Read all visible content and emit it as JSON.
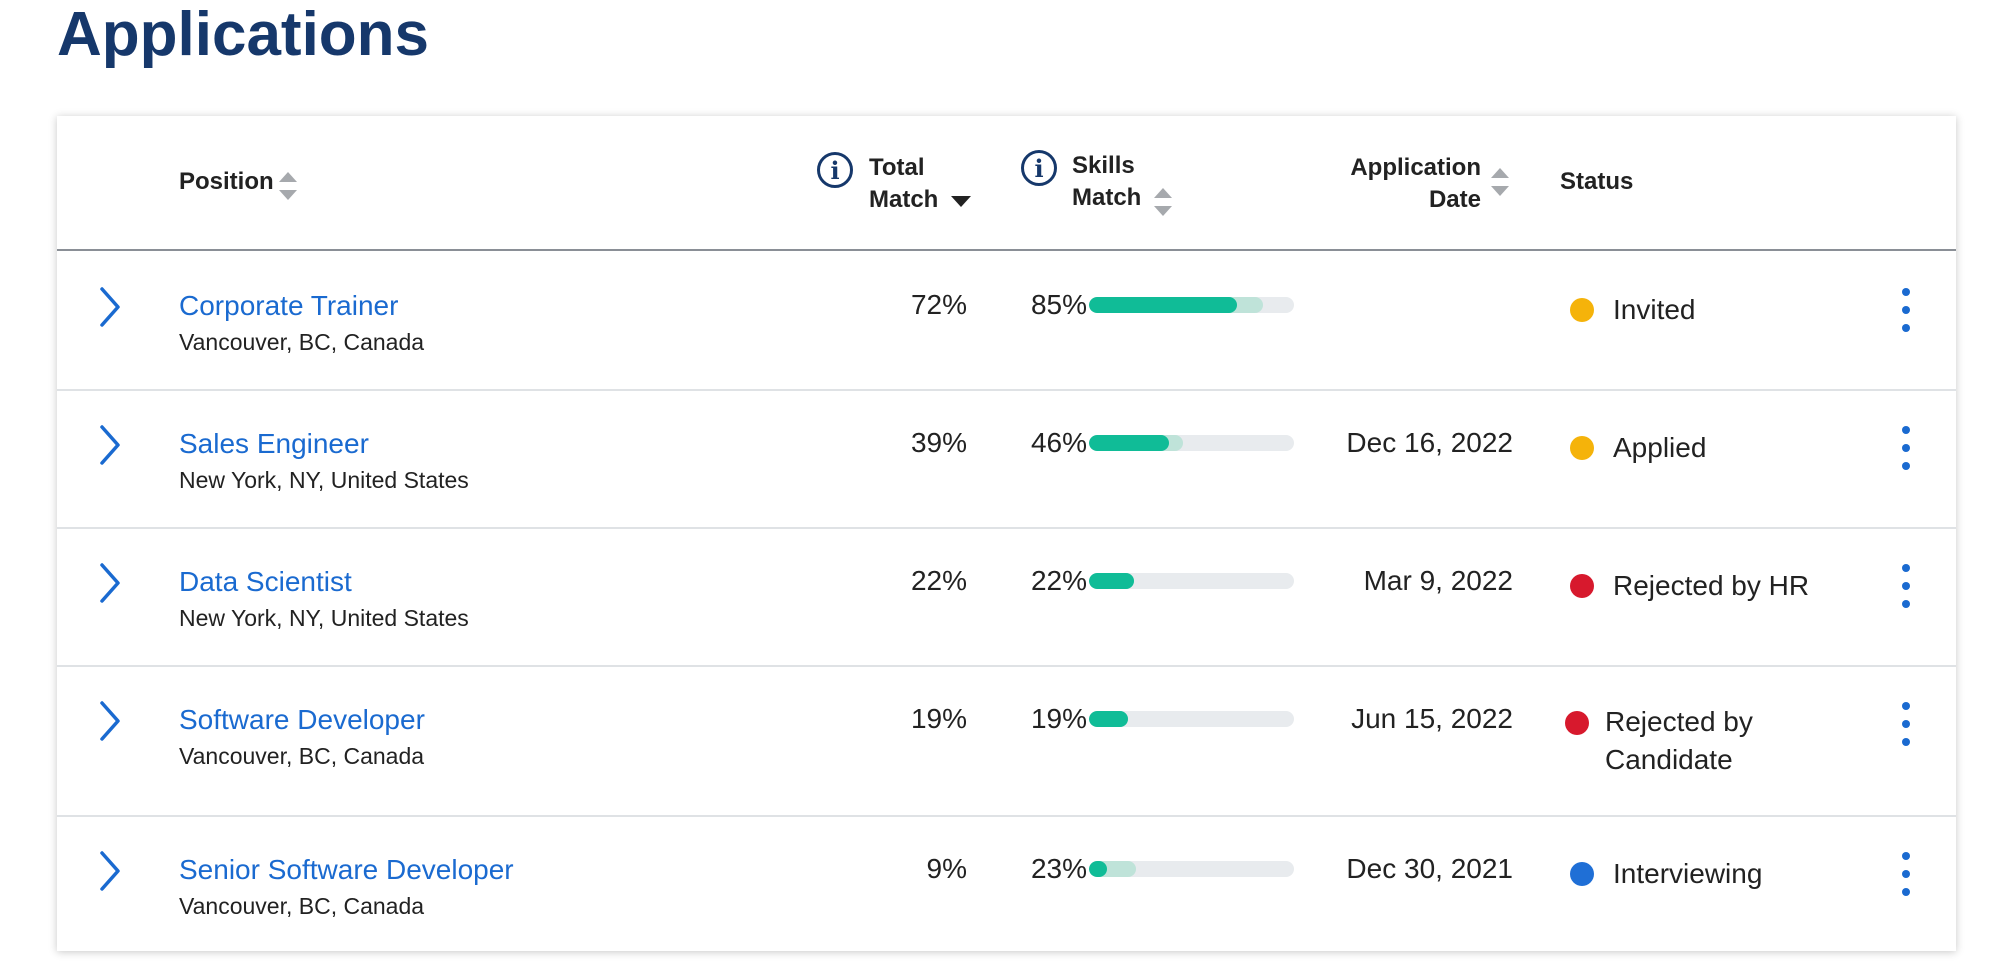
{
  "page": {
    "title": "Applications"
  },
  "table": {
    "headers": {
      "position": "Position",
      "total_match_line1": "Total",
      "total_match_line2": "Match",
      "skills_match_line1": "Skills",
      "skills_match_line2": "Match",
      "application_date_line1": "Application",
      "application_date_line2": "Date",
      "status": "Status"
    },
    "sort": {
      "column": "total_match",
      "direction": "descending"
    },
    "rows": [
      {
        "title": "Corporate Trainer",
        "location": "Vancouver, BC, Canada",
        "total_match": "72%",
        "skills_match": "85%",
        "skills_primary": 0.72,
        "skills_secondary": 0.85,
        "date": "",
        "status": "Invited",
        "status_color": "#f5b30a"
      },
      {
        "title": "Sales Engineer",
        "location": "New York, NY, United States",
        "total_match": "39%",
        "skills_match": "46%",
        "skills_primary": 0.39,
        "skills_secondary": 0.46,
        "date": "Dec 16, 2022",
        "status": "Applied",
        "status_color": "#f5b30a"
      },
      {
        "title": "Data Scientist",
        "location": "New York, NY, United States",
        "total_match": "22%",
        "skills_match": "22%",
        "skills_primary": 0.22,
        "skills_secondary": 0.22,
        "date": "Mar 9, 2022",
        "status": "Rejected by HR",
        "status_color": "#d7192d"
      },
      {
        "title": "Software Developer",
        "location": "Vancouver, BC, Canada",
        "total_match": "19%",
        "skills_match": "19%",
        "skills_primary": 0.19,
        "skills_secondary": 0.19,
        "date": "Jun 15, 2022",
        "status_line1": "Rejected by",
        "status_line2": "Candidate",
        "status_color": "#d7192d"
      },
      {
        "title": "Senior Software Developer",
        "location": "Vancouver, BC, Canada",
        "total_match": "9%",
        "skills_match": "23%",
        "skills_primary": 0.09,
        "skills_secondary": 0.23,
        "date": "Dec 30, 2021",
        "status": "Interviewing",
        "status_color": "#1f6fd6"
      }
    ]
  },
  "icons": {
    "info": "info-icon",
    "expand": "chevron-right-icon",
    "more": "kebab-menu-icon",
    "sort": "sort-icon"
  }
}
